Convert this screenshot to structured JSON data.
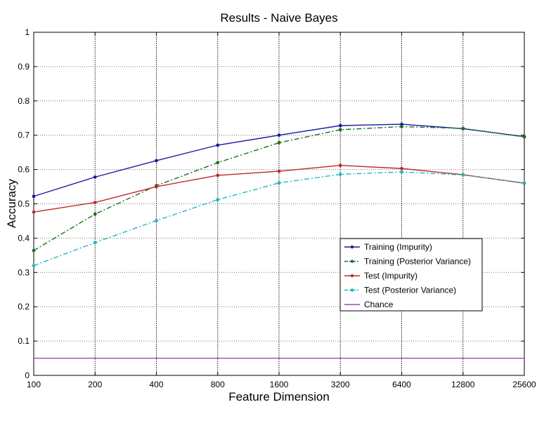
{
  "chart_data": {
    "type": "line",
    "title": "Results - Naive Bayes",
    "xlabel": "Feature Dimension",
    "ylabel": "Accuracy",
    "categories": [
      "100",
      "200",
      "400",
      "800",
      "1600",
      "3200",
      "6400",
      "12800",
      "25600"
    ],
    "y_ticks": [
      "0",
      "0.1",
      "0.2",
      "0.3",
      "0.4",
      "0.5",
      "0.6",
      "0.7",
      "0.8",
      "0.9",
      "1"
    ],
    "ylim": [
      0,
      1
    ],
    "grid": true,
    "legend_position": "center-right",
    "series": [
      {
        "name": "Training (Impurity)",
        "color": "#1a1aa0",
        "dash": "solid",
        "values": [
          0.522,
          0.578,
          0.626,
          0.671,
          0.7,
          0.728,
          0.732,
          0.719,
          0.696
        ]
      },
      {
        "name": "Training (Posterior Variance)",
        "color": "#1c6e1c",
        "dash": "dashdot",
        "values": [
          0.364,
          0.47,
          0.553,
          0.62,
          0.678,
          0.716,
          0.725,
          0.72,
          0.695
        ]
      },
      {
        "name": "Test (Impurity)",
        "color": "#c0282a",
        "dash": "solid",
        "values": [
          0.476,
          0.504,
          0.55,
          0.583,
          0.595,
          0.612,
          0.603,
          0.585,
          0.56
        ]
      },
      {
        "name": "Test (Posterior Variance)",
        "color": "#20b8c0",
        "dash": "dashdot",
        "values": [
          0.32,
          0.387,
          0.451,
          0.512,
          0.561,
          0.586,
          0.593,
          0.584,
          0.561
        ]
      },
      {
        "name": "Chance",
        "color": "#9b4ca8",
        "dash": "solid",
        "values": [
          0.05,
          0.05,
          0.05,
          0.05,
          0.05,
          0.05,
          0.05,
          0.05,
          0.05
        ],
        "markers": false
      }
    ]
  }
}
